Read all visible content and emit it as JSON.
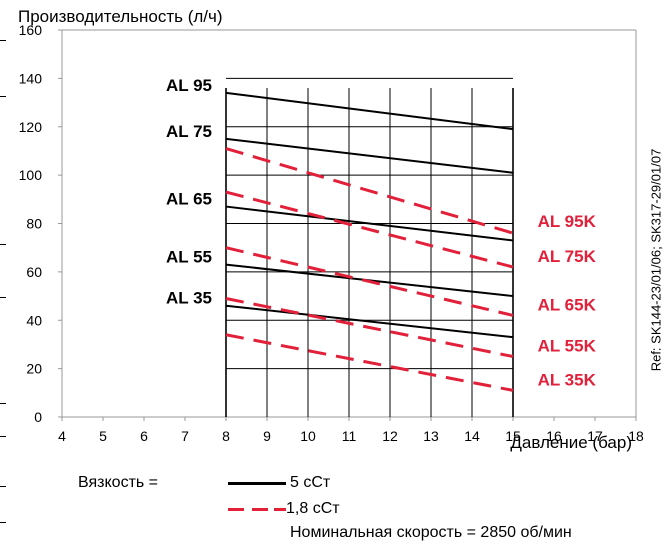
{
  "chart_data": {
    "type": "line",
    "title": "Производительность (л/ч)",
    "xlabel": "Давление (бар)",
    "ylabel": "Производительность (л/ч)",
    "xlim": [
      4,
      18
    ],
    "ylim": [
      0,
      160
    ],
    "x_ticks": [
      4,
      5,
      6,
      7,
      8,
      9,
      10,
      11,
      12,
      13,
      14,
      15,
      16,
      17,
      18
    ],
    "y_ticks": [
      0,
      20,
      40,
      60,
      80,
      100,
      120,
      140,
      160
    ],
    "grid": true,
    "series_5cSt": [
      {
        "name": "AL 95",
        "x": [
          8,
          15
        ],
        "y": [
          134,
          119
        ]
      },
      {
        "name": "AL 75",
        "x": [
          8,
          15
        ],
        "y": [
          115,
          101
        ]
      },
      {
        "name": "AL 65",
        "x": [
          8,
          15
        ],
        "y": [
          87,
          73
        ]
      },
      {
        "name": "AL 55",
        "x": [
          8,
          15
        ],
        "y": [
          63,
          50
        ]
      },
      {
        "name": "AL 35",
        "x": [
          8,
          15
        ],
        "y": [
          46,
          33
        ]
      }
    ],
    "series_1_8cSt": [
      {
        "name": "AL 95K",
        "x": [
          8,
          15
        ],
        "y": [
          111,
          76
        ]
      },
      {
        "name": "AL 75K",
        "x": [
          8,
          15
        ],
        "y": [
          93,
          62
        ]
      },
      {
        "name": "AL 65K",
        "x": [
          8,
          15
        ],
        "y": [
          70,
          42
        ]
      },
      {
        "name": "AL 55K",
        "x": [
          8,
          15
        ],
        "y": [
          49,
          25
        ]
      },
      {
        "name": "AL 35K",
        "x": [
          8,
          15
        ],
        "y": [
          34,
          11
        ]
      }
    ]
  },
  "legend": {
    "viscosity_label": "Вязкость =",
    "solid_label": "5 сСт",
    "dashed_label": "1,8 сСт",
    "speed_note": "Номинальная скорость = 2850 об/мин"
  },
  "reference": "Ref: SK144-23/01/06; SK317-29/01/07",
  "colors": {
    "solid": "#000000",
    "dashed": "#e2203a",
    "grid": "#000000"
  }
}
